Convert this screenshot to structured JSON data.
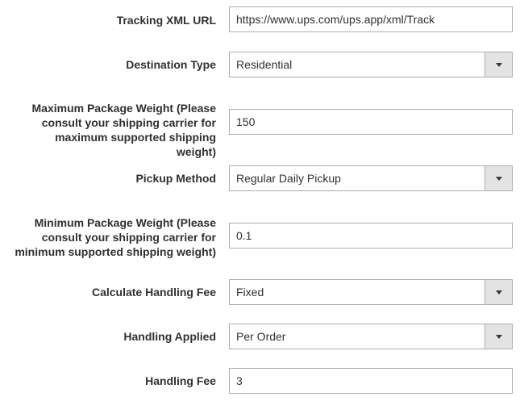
{
  "fields": [
    {
      "label": "Tracking XML URL",
      "type": "text",
      "value": "https://www.ups.com/ups.app/xml/Track"
    },
    {
      "label": "Destination Type",
      "type": "select",
      "value": "Residential"
    },
    {
      "label": "Maximum Package Weight (Please consult your shipping carrier for maximum supported shipping weight)",
      "type": "text",
      "value": "150"
    },
    {
      "label": "Pickup Method",
      "type": "select",
      "value": "Regular Daily Pickup"
    },
    {
      "label": "Minimum Package Weight (Please consult your shipping carrier for minimum supported shipping weight)",
      "type": "text",
      "value": "0.1"
    },
    {
      "label": "Calculate Handling Fee",
      "type": "select",
      "value": "Fixed"
    },
    {
      "label": "Handling Applied",
      "type": "select",
      "value": "Per Order"
    },
    {
      "label": "Handling Fee",
      "type": "text",
      "value": "3"
    }
  ]
}
